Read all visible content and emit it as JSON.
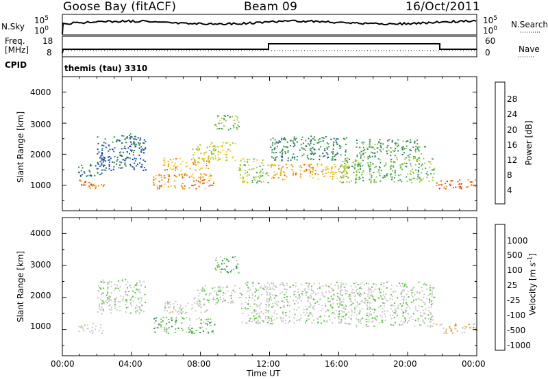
{
  "header": {
    "station": "Goose Bay (fitACF)",
    "beam": "Beam 09",
    "date": "16/Oct/2011"
  },
  "noise_panel": {
    "left_label": "N.Sky",
    "right_label": "N.Search",
    "left_ticks": [
      "10^5",
      "10^0"
    ],
    "right_ticks": [
      "10^5",
      "10^0"
    ]
  },
  "freq_panel": {
    "left_label_1": "Freq.",
    "left_label_2": "[MHz]",
    "right_label": "Nave",
    "left_ticks": [
      "18",
      "8"
    ],
    "right_ticks": [
      "60",
      "0"
    ]
  },
  "cpid": {
    "label": "CPID",
    "program": "themis (tau) 3310"
  },
  "power_panel": {
    "ylabel": "Slant Range [km]",
    "yticks": [
      "4000",
      "3000",
      "2000",
      "1000"
    ],
    "colorbar_label": "Power [dB]",
    "colorbar_ticks": [
      "28",
      "24",
      "20",
      "16",
      "12",
      "8",
      "4"
    ],
    "colors": [
      "#0a14f0",
      "#1e4aa8",
      "#2f7e56",
      "#3ea05a",
      "#9ac93c",
      "#f0d21e",
      "#f09a14",
      "#f05a0a",
      "#e81414"
    ]
  },
  "velocity_panel": {
    "ylabel": "Slant Range [km]",
    "yticks": [
      "4000",
      "3000",
      "2000",
      "1000"
    ],
    "colorbar_label": "Velocity [m s^-1]",
    "colorbar_ticks": [
      "1000",
      "500",
      "100",
      "25",
      "-25",
      "-100",
      "-500",
      "-1000"
    ],
    "colors": [
      "#1432c8",
      "#1e6a8c",
      "#2f8a4e",
      "#5ac83c",
      "#c8c8c8",
      "#c8c8c8",
      "#f0b41e",
      "#f07814",
      "#e81414"
    ]
  },
  "x_axis": {
    "xlabel": "Time UT",
    "ticks": [
      "00:00",
      "04:00",
      "08:00",
      "12:00",
      "16:00",
      "20:00",
      "00:00"
    ]
  },
  "chart_data": [
    {
      "type": "heatmap",
      "title": "Goose Bay (fitACF) Beam 09 16/Oct/2011",
      "xlabel": "Time UT",
      "ylabel": "Slant Range [km]",
      "colorbar": "Power [dB]",
      "xlim": [
        "00:00",
        "24:00"
      ],
      "ylim": [
        180,
        4500
      ],
      "clim": [
        0,
        32
      ],
      "regions": [
        {
          "t": [
            0.9,
            2.4
          ],
          "r": [
            900,
            1200
          ],
          "value": 26
        },
        {
          "t": [
            0.9,
            2.4
          ],
          "r": [
            1300,
            1700
          ],
          "value": 8
        },
        {
          "t": [
            2.0,
            4.8
          ],
          "r": [
            1500,
            2600
          ],
          "value": 7
        },
        {
          "t": [
            3.4,
            4.5
          ],
          "r": [
            2300,
            2700
          ],
          "value": 10
        },
        {
          "t": [
            5.2,
            8.8
          ],
          "r": [
            900,
            1400
          ],
          "value": 24
        },
        {
          "t": [
            5.8,
            8.5
          ],
          "r": [
            1500,
            1900
          ],
          "value": 22
        },
        {
          "t": [
            7.5,
            10.0
          ],
          "r": [
            1800,
            2400
          ],
          "value": 18
        },
        {
          "t": [
            8.8,
            10.2
          ],
          "r": [
            2800,
            3300
          ],
          "value": 14
        },
        {
          "t": [
            10.2,
            11.9
          ],
          "r": [
            1100,
            1900
          ],
          "value": 16
        },
        {
          "t": [
            12.0,
            16.5
          ],
          "r": [
            1200,
            1700
          ],
          "value": 22
        },
        {
          "t": [
            12.0,
            16.5
          ],
          "r": [
            1800,
            2600
          ],
          "value": 10
        },
        {
          "t": [
            16.0,
            21.5
          ],
          "r": [
            1100,
            1900
          ],
          "value": 14
        },
        {
          "t": [
            17.0,
            21.0
          ],
          "r": [
            1900,
            2500
          ],
          "value": 12
        },
        {
          "t": [
            21.6,
            24.0
          ],
          "r": [
            900,
            1200
          ],
          "value": 26
        }
      ]
    },
    {
      "type": "heatmap",
      "title": "Goose Bay (fitACF) Beam 09 16/Oct/2011",
      "xlabel": "Time UT",
      "ylabel": "Slant Range [km]",
      "colorbar": "Velocity [m s^-1]",
      "xlim": [
        "00:00",
        "24:00"
      ],
      "ylim": [
        180,
        4500
      ],
      "clim": [
        -1000,
        1000
      ],
      "regions": [
        {
          "t": [
            0.9,
            2.4
          ],
          "r": [
            900,
            1200
          ],
          "value": 150
        },
        {
          "t": [
            2.0,
            4.8
          ],
          "r": [
            1500,
            2600
          ],
          "value": 0
        },
        {
          "t": [
            5.2,
            8.8
          ],
          "r": [
            900,
            1400
          ],
          "value": -200
        },
        {
          "t": [
            5.8,
            8.5
          ],
          "r": [
            1500,
            1900
          ],
          "value": 100
        },
        {
          "t": [
            7.5,
            10.0
          ],
          "r": [
            1800,
            2400
          ],
          "value": 0
        },
        {
          "t": [
            8.8,
            10.2
          ],
          "r": [
            2800,
            3300
          ],
          "value": -300
        },
        {
          "t": [
            10.2,
            16.5
          ],
          "r": [
            1200,
            2500
          ],
          "value": 0
        },
        {
          "t": [
            16.0,
            21.5
          ],
          "r": [
            1100,
            2500
          ],
          "value": 0
        },
        {
          "t": [
            21.6,
            24.0
          ],
          "r": [
            900,
            1200
          ],
          "value": 400
        }
      ]
    }
  ]
}
